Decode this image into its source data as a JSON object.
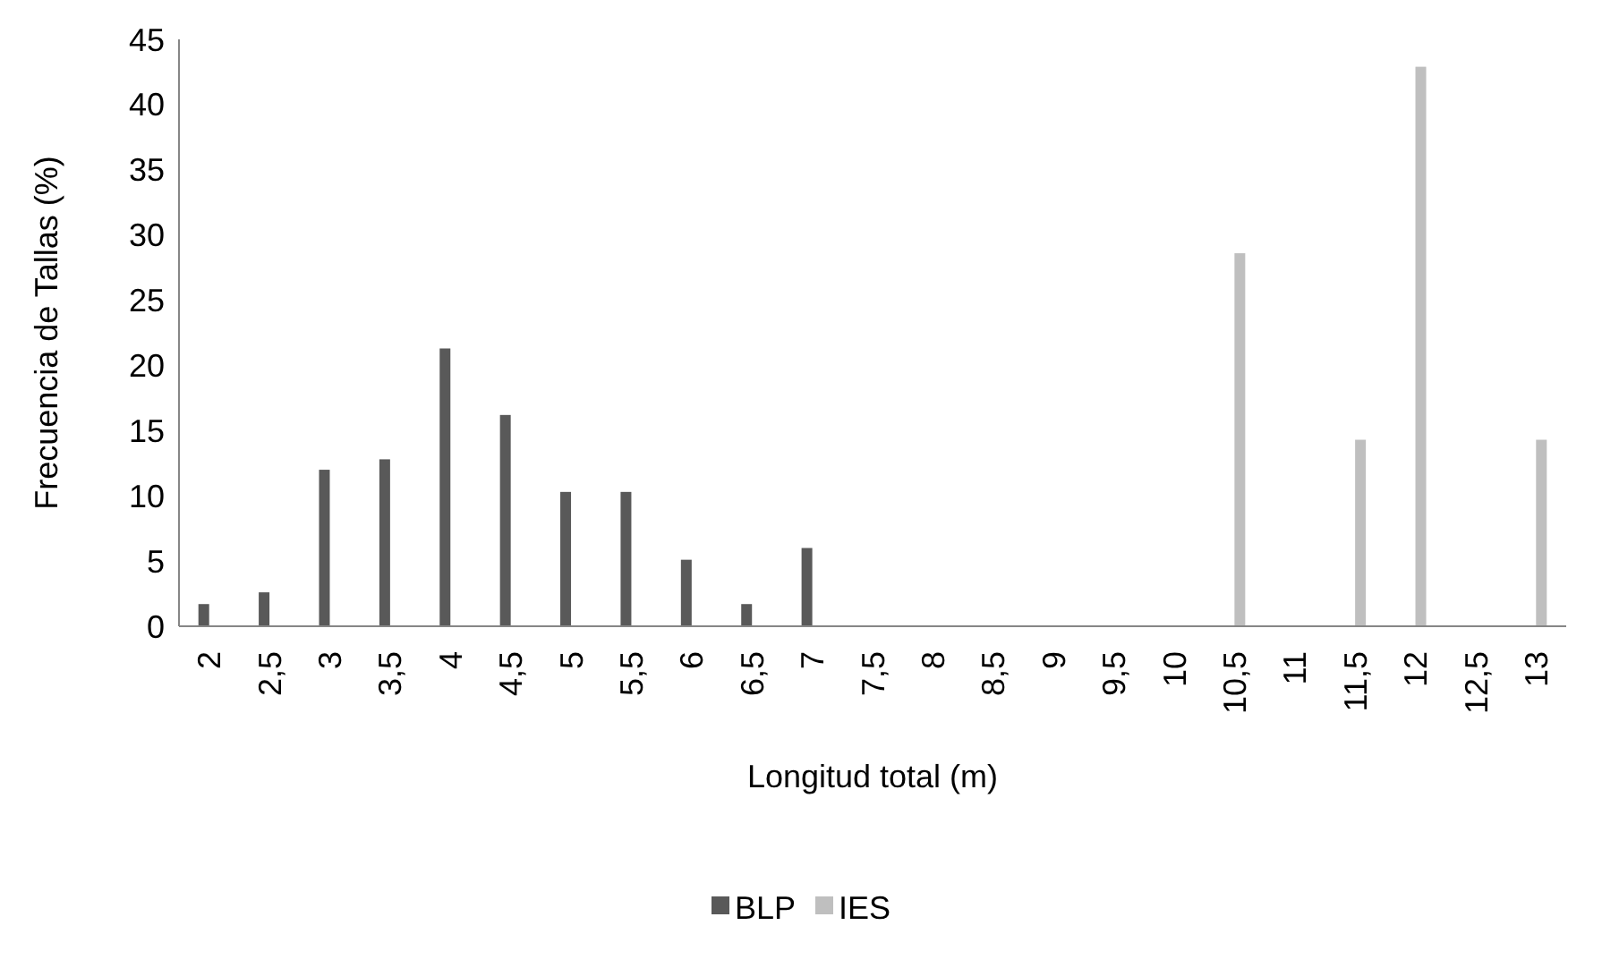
{
  "chart_data": {
    "type": "bar",
    "xlabel": "Longitud total (m)",
    "ylabel": "Frecuencia de Tallas (%)",
    "categories": [
      "2",
      "2,5",
      "3",
      "3,5",
      "4",
      "4,5",
      "5",
      "5,5",
      "6",
      "6,5",
      "7",
      "7,5",
      "8",
      "8,5",
      "9",
      "9,5",
      "10",
      "10,5",
      "11",
      "11,5",
      "12",
      "12,5",
      "13"
    ],
    "series": [
      {
        "name": "BLP",
        "color": "#595959",
        "values": [
          1.7,
          2.6,
          12,
          12.8,
          21.3,
          16.2,
          10.3,
          10.3,
          5.1,
          1.7,
          6,
          0,
          0,
          0,
          0,
          0,
          0,
          0,
          0,
          0,
          0,
          0,
          0
        ]
      },
      {
        "name": "IES",
        "color": "#bfbfbf",
        "values": [
          0,
          0,
          0,
          0,
          0,
          0,
          0,
          0,
          0,
          0,
          0,
          0,
          0,
          0,
          0,
          0,
          0,
          28.6,
          0,
          14.3,
          42.9,
          0,
          14.3
        ]
      }
    ],
    "ylim": [
      0,
      45
    ],
    "yticks": [
      0,
      5,
      10,
      15,
      20,
      25,
      30,
      35,
      40,
      45
    ],
    "grid": false,
    "legend": "bottom"
  }
}
